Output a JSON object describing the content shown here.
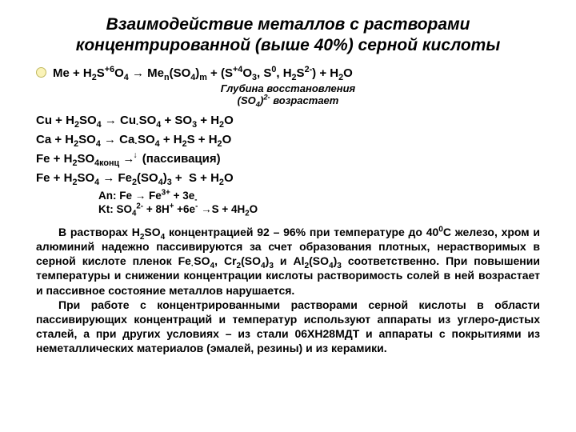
{
  "title": "Взаимодействие металлов с растворами концентрированной (выше 40%) серной кислоты",
  "eqMain": "Me + H<sub>2</sub>S<sup>+6</sup>O<sub>4</sub> → Me<sub>n</sub>(SO<sub>4</sub>)<sub>m</sub> + (S<sup>+4</sup>O<sub>3</sub>, S<sup>0</sup>, H<sub>2</sub>S<sup>2-</sup>) + H<sub>2</sub>O",
  "eqSub1": "Глубина восстановления",
  "eqSub2": "(SO<sub>4</sub>)<sup>2-</sup> возрастает",
  "eq1": "Cu + H<sub>2</sub>SO<sub>4</sub> → Cu<sub>·</sub>SO<sub>4</sub> + SO<sub>3</sub> + H<sub>2</sub>O",
  "eq2": "Ca + H<sub>2</sub>SO<sub>4</sub> → Ca<sub>·</sub>SO<sub>4</sub> + H<sub>2</sub>S + H<sub>2</sub>O",
  "eq3": "Fe + H<sub>2</sub>SO<sub>4конц</sub> <span class=\"darrow\">→</span> (пассивация)",
  "eq4": "Fe + H<sub>2</sub>SO<sub>4</sub> → Fe<sub>2</sub>(SO<sub>4</sub>)<sub>3</sub> +&nbsp;&nbsp;S + H<sub>2</sub>O",
  "half1": "An: Fe → Fe<sup>3+</sup> + 3e<sub>-</sub>",
  "half2": "Kt: SO<sub>4</sub><sup>2-</sup> + 8H<sup>+</sup> +6e<sup>-</sup> →S + 4H<sub>2</sub>O",
  "p1": "В растворах H<sub>2</sub>SO<sub>4</sub> концентрацией 92 – 96% при температуре до 40<sup>0</sup>С железо, хром и алюминий надежно пассивируются за счет образования плотных, нерастворимых в серной кислоте пленок Fe<sub>·</sub>SO<sub>4</sub>, Cr<sub>2</sub>(SO<sub>4</sub>)<sub>3</sub> и Al<sub>2</sub>(SO<sub>4</sub>)<sub>3</sub> соответственно. При повышении температуры и снижении концентрации кислоты растворимость солей в ней возрастает и пассивное состояние металлов нарушается.",
  "p2": "При работе с концентрированными растворами серной кислоты в области пассивирующих концентраций и температур используют аппараты из углеро-дистых сталей, а при других условиях – из стали 06ХН28МДТ и аппараты с покрытиями из неметаллических материалов (эмалей, резины) и из керамики."
}
